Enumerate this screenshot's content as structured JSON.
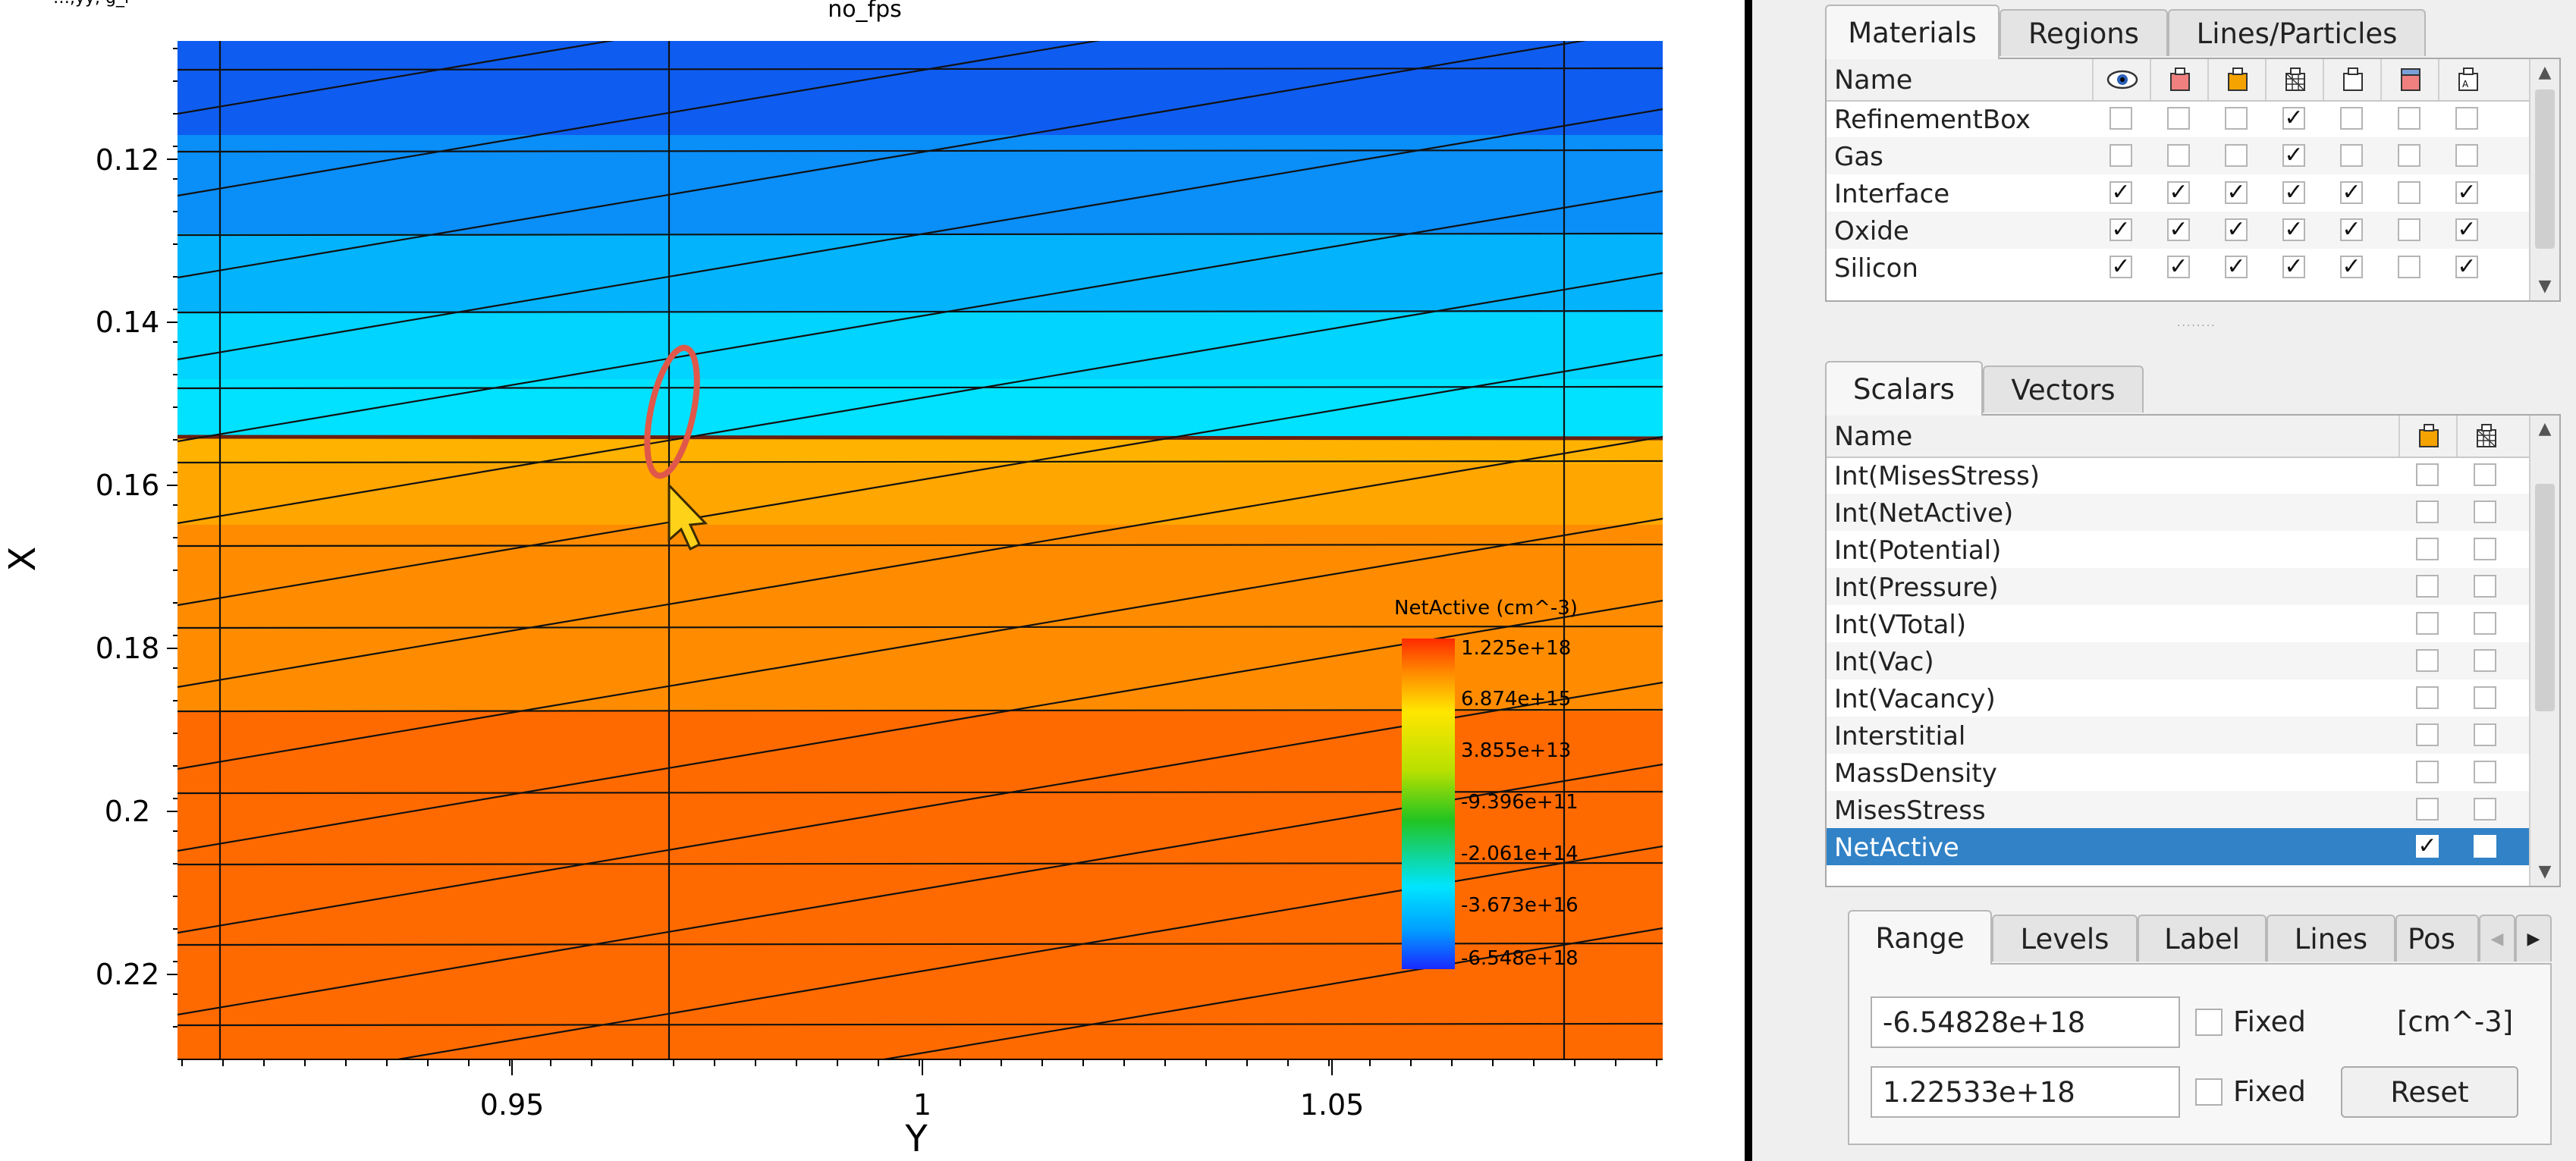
{
  "plot": {
    "title": "no_fps",
    "top_left_fragment": "…,yy, g_l",
    "xaxis_label": "Y",
    "yaxis_label": "X",
    "x_ticks": [
      "0.95",
      "1",
      "1.05"
    ],
    "y_ticks": [
      "0.12",
      "0.14",
      "0.16",
      "0.18",
      "0.2",
      "0.22"
    ]
  },
  "legend": {
    "title": "NetActive (cm^-3)",
    "labels": [
      "1.225e+18",
      "6.874e+15",
      "3.855e+13",
      "-9.396e+11",
      "-2.061e+14",
      "-3.673e+16",
      "-6.548e+18"
    ]
  },
  "materials_tabs": [
    "Materials",
    "Regions",
    "Lines/Particles"
  ],
  "materials": {
    "header": "Name",
    "columns": [
      "eye-icon",
      "red-box-icon",
      "orange-box-icon",
      "mesh-icon",
      "outline-box-icon",
      "boundary-icon",
      "label-icon"
    ],
    "rows": [
      {
        "name": "RefinementBox",
        "checks": [
          false,
          false,
          false,
          true,
          false,
          false,
          false
        ]
      },
      {
        "name": "Gas",
        "checks": [
          false,
          false,
          false,
          true,
          false,
          false,
          false
        ]
      },
      {
        "name": "Interface",
        "checks": [
          true,
          true,
          true,
          true,
          true,
          false,
          true
        ]
      },
      {
        "name": "Oxide",
        "checks": [
          true,
          true,
          true,
          true,
          true,
          false,
          true
        ]
      },
      {
        "name": "Silicon",
        "checks": [
          true,
          true,
          true,
          true,
          true,
          false,
          true
        ]
      }
    ]
  },
  "scalars_tabs": [
    "Scalars",
    "Vectors"
  ],
  "scalars": {
    "header": "Name",
    "columns": [
      "orange-box-icon",
      "mesh-icon"
    ],
    "rows": [
      {
        "name": "Int(MisesStress)",
        "checks": [
          false,
          false
        ]
      },
      {
        "name": "Int(NetActive)",
        "checks": [
          false,
          false
        ]
      },
      {
        "name": "Int(Potential)",
        "checks": [
          false,
          false
        ]
      },
      {
        "name": "Int(Pressure)",
        "checks": [
          false,
          false
        ]
      },
      {
        "name": "Int(VTotal)",
        "checks": [
          false,
          false
        ]
      },
      {
        "name": "Int(Vac)",
        "checks": [
          false,
          false
        ]
      },
      {
        "name": "Int(Vacancy)",
        "checks": [
          false,
          false
        ]
      },
      {
        "name": "Interstitial",
        "checks": [
          false,
          false
        ]
      },
      {
        "name": "MassDensity",
        "checks": [
          false,
          false
        ]
      },
      {
        "name": "MisesStress",
        "checks": [
          false,
          false
        ]
      },
      {
        "name": "NetActive",
        "checks": [
          true,
          false
        ],
        "selected": true
      }
    ]
  },
  "range_tabs": [
    "Range",
    "Levels",
    "Label",
    "Lines",
    "Pos"
  ],
  "range": {
    "min_value": "-6.54828e+18",
    "max_value": "1.22533e+18",
    "fixed_label": "Fixed",
    "unit": "[cm^-3]",
    "reset_label": "Reset",
    "fixed_min": false,
    "fixed_max": false
  },
  "colors": {
    "selection": "#3182c6",
    "legend_stops": [
      "#ff2a00",
      "#ffcc00",
      "#ffff00",
      "#22c422",
      "#00e5ff",
      "#1a2aff"
    ]
  }
}
